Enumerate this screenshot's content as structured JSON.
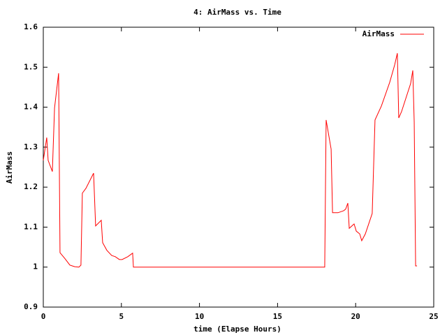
{
  "chart_data": {
    "type": "line",
    "title": "4: AirMass vs. Time",
    "x_label": "time (Elapse Hours)",
    "y_label": "AirMass",
    "xlim": [
      0,
      25
    ],
    "xticks": [
      0,
      5,
      10,
      15,
      20,
      25
    ],
    "ylim": [
      0.9,
      1.6
    ],
    "yticks": [
      0.9,
      1,
      1.1,
      1.2,
      1.3,
      1.4,
      1.5,
      1.6
    ],
    "legend": "top-right",
    "grid": false,
    "series": [
      {
        "name": "AirMass",
        "color": "#ff0000",
        "x": [
          0,
          0.22,
          0.31,
          0.58,
          0.72,
          0.98,
          1.07,
          1.39,
          1.7,
          2.01,
          2.28,
          2.41,
          2.5,
          2.73,
          3.22,
          3.35,
          3.71,
          3.8,
          4.07,
          4.38,
          4.61,
          4.87,
          5.05,
          5.41,
          5.72,
          5.77,
          18.02,
          18.11,
          18.43,
          18.52,
          18.87,
          19.23,
          19.36,
          19.5,
          19.59,
          19.9,
          20.04,
          20.26,
          20.39,
          20.62,
          21.06,
          21.24,
          21.65,
          22.18,
          22.5,
          22.67,
          22.76,
          22.94,
          23.52,
          23.66,
          23.75,
          23.84,
          23.93
        ],
        "values": [
          1.267,
          1.324,
          1.267,
          1.239,
          1.398,
          1.485,
          1.036,
          1.021,
          1.005,
          1.001,
          1.0,
          1.005,
          1.185,
          1.197,
          1.235,
          1.103,
          1.117,
          1.061,
          1.042,
          1.029,
          1.026,
          1.019,
          1.019,
          1.026,
          1.035,
          1.0,
          1.0,
          1.368,
          1.295,
          1.136,
          1.136,
          1.141,
          1.145,
          1.16,
          1.097,
          1.108,
          1.09,
          1.083,
          1.066,
          1.083,
          1.134,
          1.368,
          1.403,
          1.462,
          1.506,
          1.535,
          1.373,
          1.389,
          1.459,
          1.492,
          1.363,
          1.003,
          1.003
        ]
      }
    ]
  }
}
